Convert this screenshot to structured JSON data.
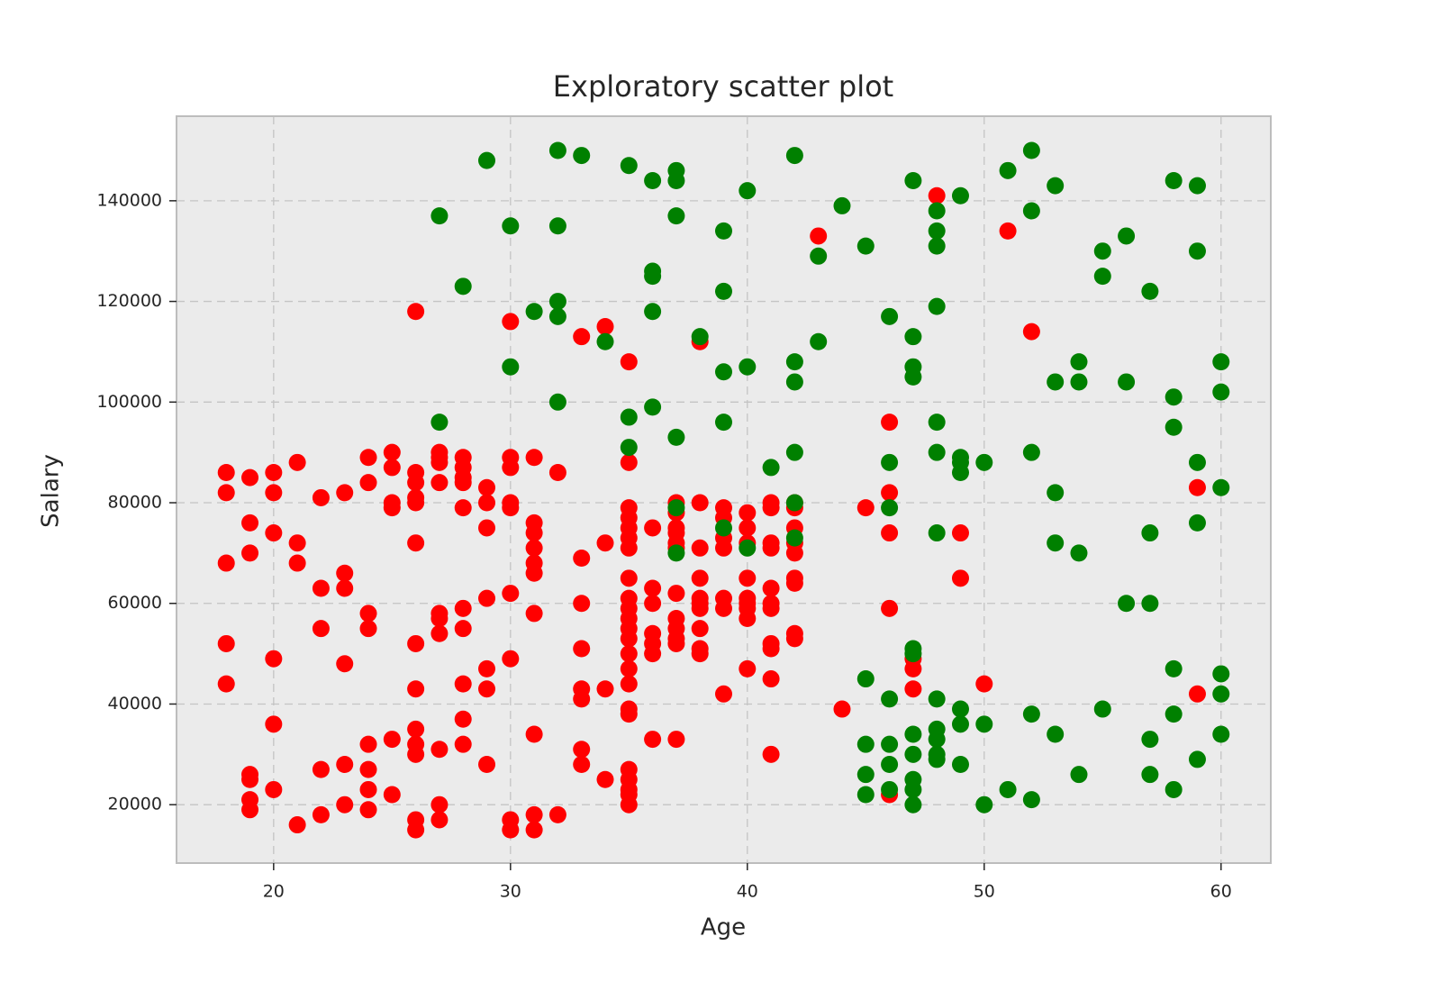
{
  "chart_data": {
    "type": "scatter",
    "title": "Exploratory scatter plot",
    "x_label": "Age",
    "y_label": "Salary",
    "xlim": [
      15.9,
      62.1
    ],
    "ylim": [
      8400,
      156800
    ],
    "xticks": [
      20,
      30,
      40,
      50,
      60
    ],
    "yticks": [
      20000,
      40000,
      60000,
      80000,
      100000,
      120000,
      140000
    ],
    "grid": true,
    "series": [
      {
        "color": "#ff0000",
        "x": [
          18,
          18,
          18,
          18,
          18,
          19,
          19,
          19,
          19,
          19,
          19,
          19,
          20,
          20,
          20,
          20,
          20,
          20,
          21,
          21,
          21,
          21,
          22,
          22,
          22,
          22,
          22,
          23,
          23,
          23,
          23,
          23,
          23,
          24,
          24,
          24,
          24,
          24,
          24,
          24,
          24,
          25,
          25,
          25,
          25,
          25,
          25,
          26,
          26,
          26,
          26,
          26,
          26,
          26,
          26,
          26,
          26,
          26,
          26,
          26,
          27,
          27,
          27,
          27,
          27,
          27,
          27,
          27,
          27,
          27,
          28,
          28,
          28,
          28,
          28,
          28,
          28,
          28,
          28,
          28,
          29,
          29,
          29,
          29,
          29,
          29,
          29,
          30,
          30,
          30,
          30,
          30,
          30,
          30,
          30,
          30,
          31,
          31,
          31,
          31,
          31,
          31,
          31,
          31,
          31,
          31,
          32,
          32,
          33,
          33,
          33,
          33,
          33,
          33,
          33,
          33,
          34,
          34,
          34,
          34,
          35,
          35,
          35,
          35,
          35,
          35,
          35,
          35,
          35,
          35,
          35,
          35,
          35,
          35,
          35,
          35,
          35,
          35,
          35,
          35,
          35,
          35,
          35,
          36,
          36,
          36,
          36,
          36,
          36,
          36,
          37,
          37,
          37,
          37,
          37,
          37,
          37,
          37,
          37,
          37,
          37,
          37,
          38,
          38,
          38,
          38,
          38,
          38,
          38,
          38,
          38,
          38,
          39,
          39,
          39,
          39,
          39,
          39,
          39,
          40,
          40,
          40,
          40,
          40,
          40,
          40,
          40,
          40,
          41,
          41,
          41,
          41,
          41,
          41,
          41,
          41,
          41,
          41,
          41,
          42,
          42,
          42,
          42,
          42,
          42,
          42,
          42,
          42,
          43,
          44,
          45,
          46,
          46,
          46,
          46,
          46,
          47,
          47,
          47,
          48,
          49,
          49,
          50,
          51,
          52,
          59,
          59
        ],
        "values": [
          86000,
          82000,
          68000,
          52000,
          44000,
          85000,
          76000,
          70000,
          26000,
          25000,
          21000,
          19000,
          86000,
          82000,
          74000,
          49000,
          36000,
          23000,
          88000,
          72000,
          68000,
          16000,
          81000,
          63000,
          55000,
          27000,
          18000,
          82000,
          66000,
          63000,
          48000,
          28000,
          20000,
          89000,
          84000,
          58000,
          55000,
          32000,
          27000,
          23000,
          19000,
          90000,
          87000,
          80000,
          79000,
          33000,
          22000,
          118000,
          86000,
          84000,
          81000,
          80000,
          72000,
          52000,
          43000,
          35000,
          32000,
          30000,
          17000,
          15000,
          90000,
          89000,
          88000,
          84000,
          58000,
          57000,
          54000,
          31000,
          20000,
          17000,
          89000,
          87000,
          85000,
          84000,
          79000,
          59000,
          55000,
          44000,
          37000,
          32000,
          83000,
          80000,
          75000,
          61000,
          47000,
          43000,
          28000,
          116000,
          89000,
          87000,
          80000,
          79000,
          62000,
          49000,
          17000,
          15000,
          89000,
          76000,
          74000,
          71000,
          68000,
          66000,
          58000,
          34000,
          18000,
          15000,
          86000,
          18000,
          113000,
          69000,
          60000,
          51000,
          43000,
          41000,
          31000,
          28000,
          115000,
          72000,
          43000,
          25000,
          108000,
          88000,
          79000,
          77000,
          75000,
          73000,
          71000,
          65000,
          61000,
          59000,
          57000,
          55000,
          53000,
          50000,
          47000,
          44000,
          39000,
          38000,
          27000,
          25000,
          23000,
          22000,
          20000,
          75000,
          63000,
          60000,
          54000,
          52000,
          50000,
          33000,
          80000,
          78000,
          75000,
          74000,
          72000,
          71000,
          62000,
          57000,
          55000,
          53000,
          52000,
          33000,
          112000,
          80000,
          71000,
          65000,
          61000,
          60000,
          59000,
          55000,
          51000,
          50000,
          79000,
          77000,
          73000,
          71000,
          61000,
          59000,
          42000,
          78000,
          75000,
          72000,
          65000,
          61000,
          60000,
          59000,
          57000,
          47000,
          80000,
          79000,
          72000,
          71000,
          63000,
          60000,
          59000,
          52000,
          51000,
          45000,
          30000,
          80000,
          79000,
          75000,
          72000,
          70000,
          65000,
          64000,
          54000,
          53000,
          133000,
          39000,
          79000,
          96000,
          82000,
          74000,
          59000,
          22000,
          49000,
          47000,
          43000,
          141000,
          74000,
          65000,
          44000,
          134000,
          114000,
          83000,
          42000
        ]
      },
      {
        "color": "#008000",
        "x": [
          27,
          27,
          28,
          29,
          30,
          30,
          31,
          32,
          32,
          32,
          32,
          32,
          33,
          34,
          35,
          35,
          35,
          36,
          36,
          36,
          36,
          36,
          37,
          37,
          37,
          37,
          37,
          37,
          38,
          39,
          39,
          39,
          39,
          39,
          40,
          40,
          40,
          41,
          42,
          42,
          42,
          42,
          42,
          42,
          43,
          43,
          44,
          45,
          45,
          45,
          45,
          45,
          46,
          46,
          46,
          46,
          46,
          46,
          46,
          47,
          47,
          47,
          47,
          47,
          47,
          47,
          47,
          47,
          47,
          47,
          48,
          48,
          48,
          48,
          48,
          48,
          48,
          48,
          48,
          48,
          48,
          48,
          49,
          49,
          49,
          49,
          49,
          49,
          49,
          50,
          50,
          50,
          51,
          51,
          52,
          52,
          52,
          52,
          52,
          53,
          53,
          53,
          53,
          53,
          54,
          54,
          54,
          54,
          55,
          55,
          55,
          56,
          56,
          56,
          57,
          57,
          57,
          57,
          57,
          58,
          58,
          58,
          58,
          58,
          58,
          59,
          59,
          59,
          59,
          59,
          60,
          60,
          60,
          60,
          60,
          60
        ],
        "values": [
          137000,
          96000,
          123000,
          148000,
          135000,
          107000,
          118000,
          150000,
          135000,
          120000,
          117000,
          100000,
          149000,
          112000,
          147000,
          97000,
          91000,
          144000,
          126000,
          125000,
          118000,
          99000,
          146000,
          144000,
          137000,
          93000,
          79000,
          70000,
          113000,
          134000,
          122000,
          106000,
          96000,
          75000,
          142000,
          107000,
          71000,
          87000,
          149000,
          108000,
          104000,
          90000,
          80000,
          73000,
          129000,
          112000,
          139000,
          131000,
          45000,
          32000,
          26000,
          22000,
          117000,
          88000,
          79000,
          41000,
          32000,
          28000,
          23000,
          144000,
          113000,
          107000,
          105000,
          51000,
          50000,
          34000,
          30000,
          25000,
          23000,
          20000,
          138000,
          134000,
          131000,
          119000,
          96000,
          90000,
          74000,
          41000,
          35000,
          33000,
          30000,
          29000,
          141000,
          89000,
          88000,
          86000,
          39000,
          36000,
          28000,
          88000,
          36000,
          20000,
          146000,
          23000,
          150000,
          138000,
          90000,
          38000,
          21000,
          143000,
          104000,
          82000,
          72000,
          34000,
          108000,
          104000,
          70000,
          26000,
          130000,
          125000,
          39000,
          133000,
          104000,
          60000,
          122000,
          74000,
          60000,
          33000,
          26000,
          144000,
          101000,
          95000,
          47000,
          38000,
          23000,
          143000,
          130000,
          88000,
          76000,
          29000,
          108000,
          102000,
          83000,
          46000,
          42000,
          34000
        ]
      }
    ]
  }
}
